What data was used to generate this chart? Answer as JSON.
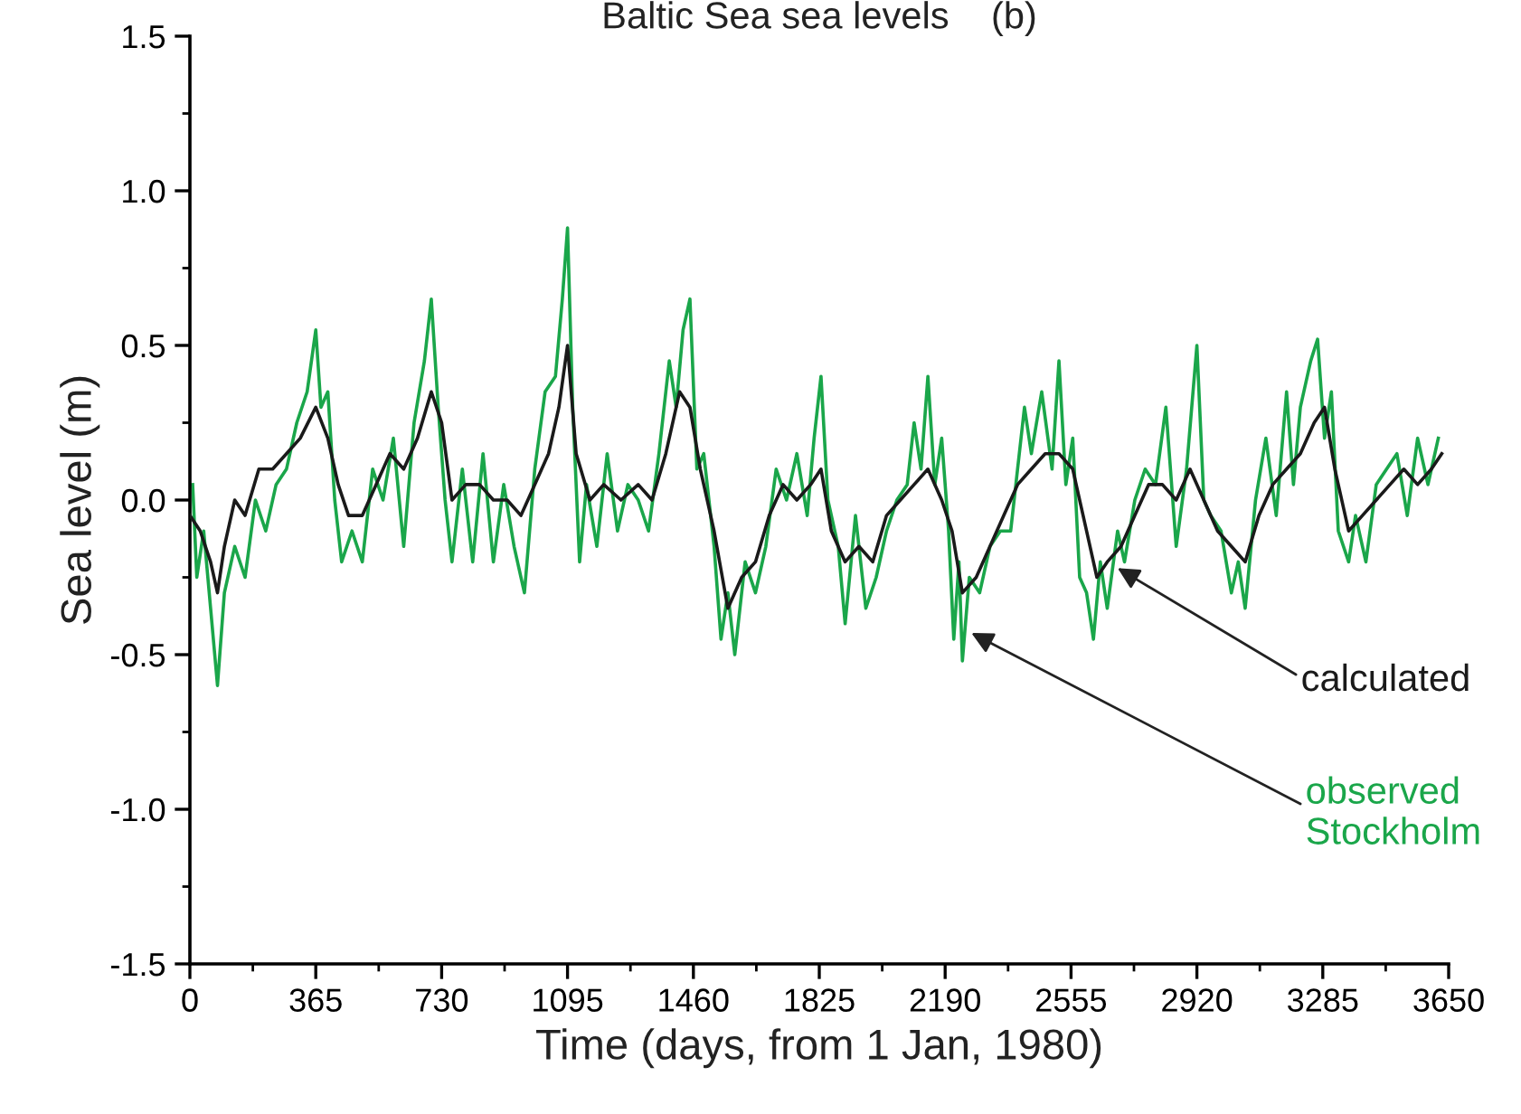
{
  "chart_data": {
    "type": "line",
    "title": "Baltic Sea sea levels    (b)",
    "xlabel": "Time (days, from 1 Jan, 1980)",
    "ylabel": "Sea level (m)",
    "xlim": [
      0,
      3650
    ],
    "xticks": [
      0,
      365,
      730,
      1095,
      1460,
      1825,
      2190,
      2555,
      2920,
      3285,
      3650
    ],
    "ylim": [
      -1.5,
      1.5
    ],
    "yticks": [
      {
        "value": -1.5,
        "label": "-1.5"
      },
      {
        "value": -1.0,
        "label": "-1.0"
      },
      {
        "value": -0.5,
        "label": "-0.5"
      },
      {
        "value": 0.0,
        "label": "0.0"
      },
      {
        "value": 0.5,
        "label": "0.5"
      },
      {
        "value": 1.0,
        "label": "1.0"
      },
      {
        "value": 1.5,
        "label": "1.5"
      }
    ],
    "grid": false,
    "legend": false,
    "marker": "none",
    "line_style": "solid",
    "series": [
      {
        "color": "#1aa64a",
        "x": [
          8,
          20,
          40,
          60,
          80,
          100,
          130,
          160,
          190,
          220,
          250,
          280,
          310,
          340,
          365,
          380,
          400,
          420,
          440,
          470,
          500,
          530,
          560,
          590,
          620,
          650,
          680,
          700,
          720,
          740,
          760,
          790,
          820,
          850,
          880,
          910,
          940,
          970,
          1000,
          1030,
          1060,
          1080,
          1095,
          1110,
          1130,
          1150,
          1180,
          1210,
          1240,
          1270,
          1300,
          1330,
          1360,
          1390,
          1410,
          1430,
          1450,
          1470,
          1490,
          1520,
          1540,
          1560,
          1580,
          1610,
          1640,
          1670,
          1700,
          1730,
          1760,
          1790,
          1810,
          1830,
          1850,
          1880,
          1900,
          1930,
          1960,
          1990,
          2020,
          2050,
          2080,
          2100,
          2120,
          2140,
          2160,
          2180,
          2200,
          2215,
          2230,
          2240,
          2260,
          2290,
          2320,
          2350,
          2380,
          2400,
          2420,
          2440,
          2470,
          2500,
          2520,
          2540,
          2560,
          2580,
          2600,
          2620,
          2640,
          2660,
          2690,
          2710,
          2740,
          2770,
          2800,
          2830,
          2860,
          2890,
          2920,
          2940,
          2960,
          2990,
          3020,
          3040,
          3060,
          3090,
          3120,
          3150,
          3180,
          3200,
          3220,
          3250,
          3270,
          3290,
          3310,
          3330,
          3360,
          3380,
          3410,
          3440,
          3470,
          3500,
          3530,
          3560,
          3590,
          3620
        ],
        "values": [
          0.05,
          -0.25,
          -0.1,
          -0.35,
          -0.6,
          -0.3,
          -0.15,
          -0.25,
          0.0,
          -0.1,
          0.05,
          0.1,
          0.25,
          0.35,
          0.55,
          0.3,
          0.35,
          0.0,
          -0.2,
          -0.1,
          -0.2,
          0.1,
          0.0,
          0.2,
          -0.15,
          0.25,
          0.45,
          0.65,
          0.3,
          0.0,
          -0.2,
          0.1,
          -0.2,
          0.15,
          -0.2,
          0.05,
          -0.15,
          -0.3,
          0.1,
          0.35,
          0.4,
          0.65,
          0.88,
          0.3,
          -0.2,
          0.05,
          -0.15,
          0.15,
          -0.1,
          0.05,
          0.0,
          -0.1,
          0.15,
          0.45,
          0.3,
          0.55,
          0.65,
          0.1,
          0.15,
          -0.15,
          -0.45,
          -0.3,
          -0.5,
          -0.2,
          -0.3,
          -0.15,
          0.1,
          0.0,
          0.15,
          -0.05,
          0.2,
          0.4,
          0.0,
          -0.15,
          -0.4,
          -0.05,
          -0.35,
          -0.25,
          -0.1,
          0.0,
          0.05,
          0.25,
          0.1,
          0.4,
          0.05,
          0.2,
          -0.1,
          -0.45,
          -0.2,
          -0.52,
          -0.25,
          -0.3,
          -0.15,
          -0.1,
          -0.1,
          0.1,
          0.3,
          0.15,
          0.35,
          0.1,
          0.45,
          0.05,
          0.2,
          -0.25,
          -0.3,
          -0.45,
          -0.2,
          -0.35,
          -0.1,
          -0.2,
          0.0,
          0.1,
          0.05,
          0.3,
          -0.15,
          0.1,
          0.5,
          0.0,
          -0.05,
          -0.1,
          -0.3,
          -0.2,
          -0.35,
          0.0,
          0.2,
          -0.05,
          0.35,
          0.05,
          0.3,
          0.45,
          0.52,
          0.2,
          0.35,
          -0.1,
          -0.2,
          -0.05,
          -0.2,
          0.05,
          0.1,
          0.15,
          -0.05,
          0.2,
          0.05,
          0.2
        ]
      },
      {
        "color": "#1a1a1a",
        "x": [
          0,
          30,
          60,
          80,
          100,
          130,
          160,
          200,
          240,
          280,
          320,
          365,
          400,
          430,
          460,
          500,
          540,
          580,
          620,
          660,
          700,
          730,
          760,
          800,
          840,
          880,
          920,
          960,
          1000,
          1040,
          1070,
          1095,
          1120,
          1160,
          1200,
          1250,
          1300,
          1340,
          1380,
          1420,
          1450,
          1480,
          1520,
          1560,
          1600,
          1640,
          1680,
          1720,
          1760,
          1800,
          1830,
          1860,
          1900,
          1940,
          1980,
          2020,
          2060,
          2100,
          2140,
          2180,
          2210,
          2240,
          2280,
          2320,
          2360,
          2400,
          2440,
          2480,
          2520,
          2560,
          2600,
          2630,
          2660,
          2700,
          2740,
          2780,
          2820,
          2860,
          2900,
          2940,
          2980,
          3020,
          3060,
          3100,
          3140,
          3180,
          3220,
          3260,
          3290,
          3320,
          3360,
          3400,
          3440,
          3480,
          3520,
          3560,
          3600,
          3630
        ],
        "values": [
          -0.05,
          -0.1,
          -0.2,
          -0.3,
          -0.15,
          0.0,
          -0.05,
          0.1,
          0.1,
          0.15,
          0.2,
          0.3,
          0.2,
          0.05,
          -0.05,
          -0.05,
          0.05,
          0.15,
          0.1,
          0.2,
          0.35,
          0.25,
          0.0,
          0.05,
          0.05,
          0.0,
          0.0,
          -0.05,
          0.05,
          0.15,
          0.3,
          0.5,
          0.15,
          0.0,
          0.05,
          0.0,
          0.05,
          0.0,
          0.15,
          0.35,
          0.3,
          0.1,
          -0.1,
          -0.35,
          -0.25,
          -0.2,
          -0.05,
          0.05,
          0.0,
          0.05,
          0.1,
          -0.1,
          -0.2,
          -0.15,
          -0.2,
          -0.05,
          0.0,
          0.05,
          0.1,
          0.0,
          -0.1,
          -0.3,
          -0.25,
          -0.15,
          -0.05,
          0.05,
          0.1,
          0.15,
          0.15,
          0.1,
          -0.1,
          -0.25,
          -0.2,
          -0.15,
          -0.05,
          0.05,
          0.05,
          0.0,
          0.1,
          0.0,
          -0.1,
          -0.15,
          -0.2,
          -0.05,
          0.05,
          0.1,
          0.15,
          0.25,
          0.3,
          0.1,
          -0.1,
          -0.05,
          0.0,
          0.05,
          0.1,
          0.05,
          0.1,
          0.15
        ]
      }
    ],
    "annotations": [
      {
        "text": "observed\nStockholm",
        "x": 2266,
        "y": -0.43
      },
      {
        "text": "calculated",
        "x": 2690,
        "y": -0.22
      }
    ]
  }
}
